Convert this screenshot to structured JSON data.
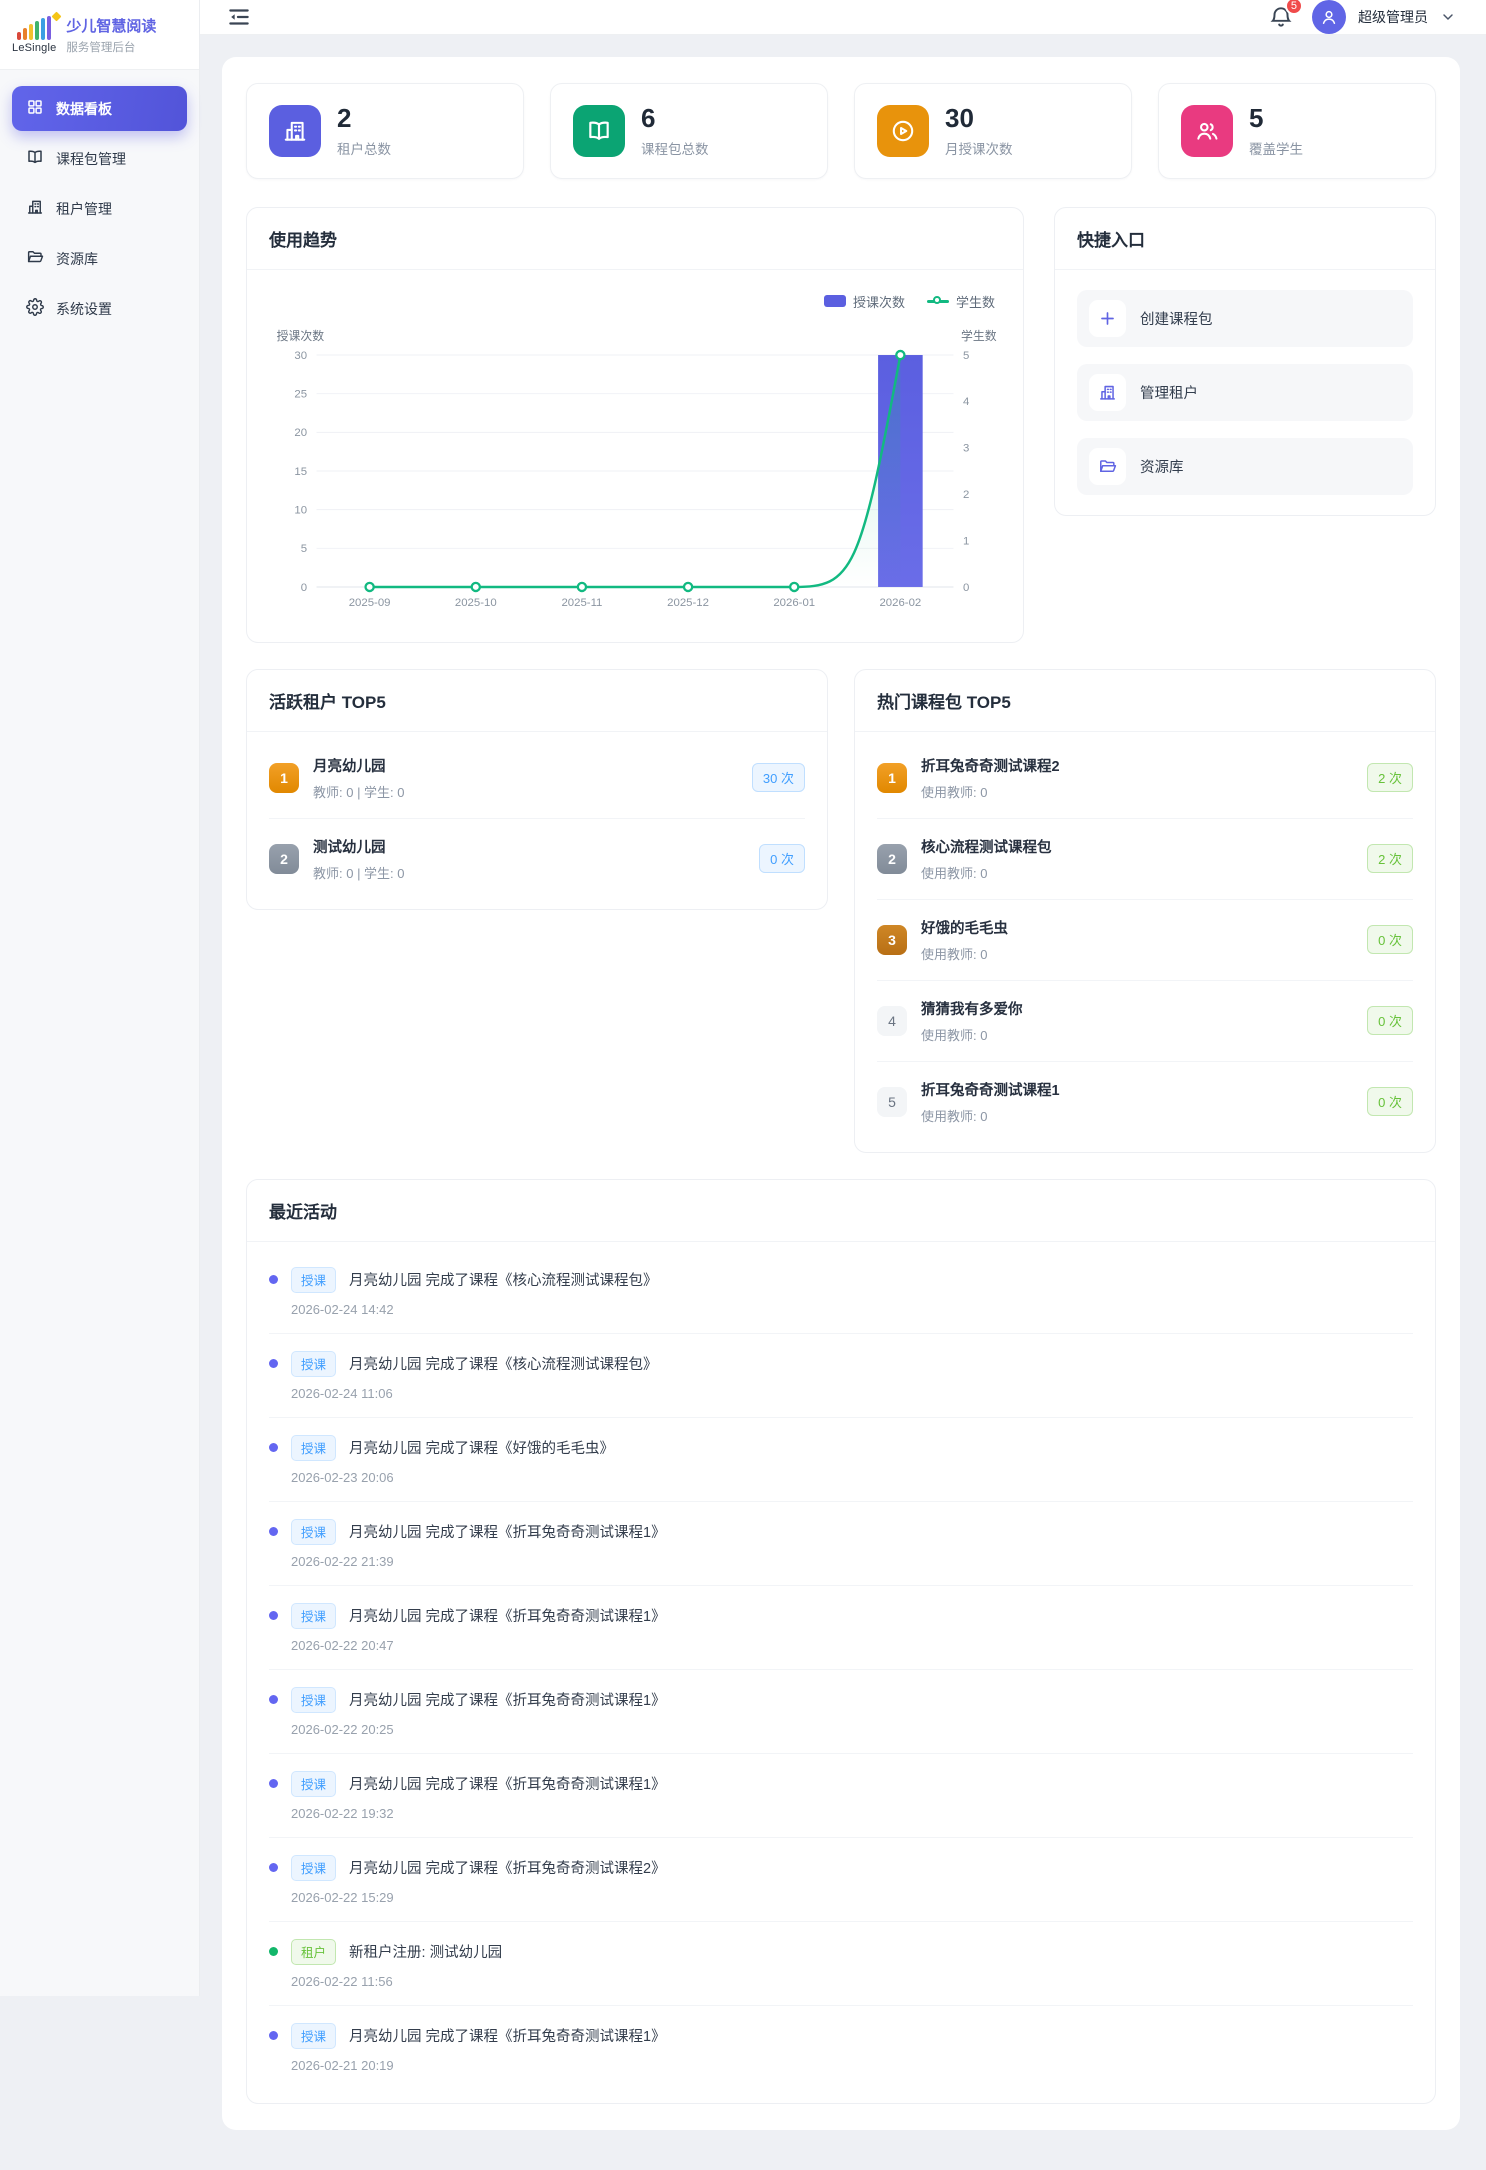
{
  "theme": {
    "primary": "#5b5fe0",
    "bar_color": "#5b5fe0",
    "line_color": "#12b981",
    "badge_red": "#f04b4b"
  },
  "app": {
    "brand_name": "LeSingle",
    "title": "少儿智慧阅读",
    "subtitle": "服务管理后台"
  },
  "sidebar": {
    "items": [
      {
        "label": "数据看板",
        "icon": "dashboard-icon",
        "active": true
      },
      {
        "label": "课程包管理",
        "icon": "book-icon",
        "active": false
      },
      {
        "label": "租户管理",
        "icon": "building-icon",
        "active": false
      },
      {
        "label": "资源库",
        "icon": "folder-icon",
        "active": false
      },
      {
        "label": "系统设置",
        "icon": "gear-icon",
        "active": false
      }
    ]
  },
  "topbar": {
    "notification_count": "5",
    "user_name": "超级管理员"
  },
  "stats": [
    {
      "value": "2",
      "label": "租户总数",
      "icon": "building-icon",
      "color": "#5b5fe0"
    },
    {
      "value": "6",
      "label": "课程包总数",
      "icon": "book-icon",
      "color": "#0ba473"
    },
    {
      "value": "30",
      "label": "月授课次数",
      "icon": "play-icon",
      "color": "#e8930c"
    },
    {
      "value": "5",
      "label": "覆盖学生",
      "icon": "users-icon",
      "color": "#e93a80"
    }
  ],
  "chart_panel": {
    "title": "使用趋势"
  },
  "chart_data": {
    "type": "bar",
    "title": "使用趋势",
    "categories": [
      "2025-09",
      "2025-10",
      "2025-11",
      "2025-12",
      "2026-01",
      "2026-02"
    ],
    "series": [
      {
        "name": "授课次数",
        "type": "bar",
        "axis": "left",
        "color": "#5b5fe0",
        "values": [
          0,
          0,
          0,
          0,
          0,
          30
        ]
      },
      {
        "name": "学生数",
        "type": "line",
        "axis": "right",
        "color": "#12b981",
        "values": [
          0,
          0,
          0,
          0,
          0,
          5
        ]
      }
    ],
    "left_axis": {
      "name": "授课次数",
      "min": 0,
      "max": 30,
      "ticks": [
        0,
        5,
        10,
        15,
        20,
        25,
        30
      ]
    },
    "right_axis": {
      "name": "学生数",
      "min": 0,
      "max": 5,
      "ticks": [
        0,
        1,
        2,
        3,
        4,
        5
      ]
    },
    "grid": true,
    "legend_position": "top-right"
  },
  "quick_entry": {
    "title": "快捷入口",
    "items": [
      {
        "label": "创建课程包",
        "icon": "plus-icon"
      },
      {
        "label": "管理租户",
        "icon": "building-icon"
      },
      {
        "label": "资源库",
        "icon": "folder-icon"
      }
    ]
  },
  "active_tenants": {
    "title": "活跃租户 TOP5",
    "items": [
      {
        "rank": "1",
        "name": "月亮幼儿园",
        "detail": "教师: 0 | 学生: 0",
        "count": "30 次"
      },
      {
        "rank": "2",
        "name": "测试幼儿园",
        "detail": "教师: 0 | 学生: 0",
        "count": "0 次"
      }
    ]
  },
  "hot_courses": {
    "title": "热门课程包 TOP5",
    "items": [
      {
        "rank": "1",
        "name": "折耳兔奇奇测试课程2",
        "detail": "使用教师: 0",
        "count": "2 次"
      },
      {
        "rank": "2",
        "name": "核心流程测试课程包",
        "detail": "使用教师: 0",
        "count": "2 次"
      },
      {
        "rank": "3",
        "name": "好饿的毛毛虫",
        "detail": "使用教师: 0",
        "count": "0 次"
      },
      {
        "rank": "4",
        "name": "猜猜我有多爱你",
        "detail": "使用教师: 0",
        "count": "0 次"
      },
      {
        "rank": "5",
        "name": "折耳兔奇奇测试课程1",
        "detail": "使用教师: 0",
        "count": "0 次"
      }
    ]
  },
  "recent_activity": {
    "title": "最近活动",
    "items": [
      {
        "kind": "course",
        "tag": "授课",
        "text": "月亮幼儿园 完成了课程《核心流程测试课程包》",
        "time": "2026-02-24 14:42"
      },
      {
        "kind": "course",
        "tag": "授课",
        "text": "月亮幼儿园 完成了课程《核心流程测试课程包》",
        "time": "2026-02-24 11:06"
      },
      {
        "kind": "course",
        "tag": "授课",
        "text": "月亮幼儿园 完成了课程《好饿的毛毛虫》",
        "time": "2026-02-23 20:06"
      },
      {
        "kind": "course",
        "tag": "授课",
        "text": "月亮幼儿园 完成了课程《折耳兔奇奇测试课程1》",
        "time": "2026-02-22 21:39"
      },
      {
        "kind": "course",
        "tag": "授课",
        "text": "月亮幼儿园 完成了课程《折耳兔奇奇测试课程1》",
        "time": "2026-02-22 20:47"
      },
      {
        "kind": "course",
        "tag": "授课",
        "text": "月亮幼儿园 完成了课程《折耳兔奇奇测试课程1》",
        "time": "2026-02-22 20:25"
      },
      {
        "kind": "course",
        "tag": "授课",
        "text": "月亮幼儿园 完成了课程《折耳兔奇奇测试课程1》",
        "time": "2026-02-22 19:32"
      },
      {
        "kind": "course",
        "tag": "授课",
        "text": "月亮幼儿园 完成了课程《折耳兔奇奇测试课程2》",
        "time": "2026-02-22 15:29"
      },
      {
        "kind": "tenant",
        "tag": "租户",
        "text": "新租户注册: 测试幼儿园",
        "time": "2026-02-22 11:56"
      },
      {
        "kind": "course",
        "tag": "授课",
        "text": "月亮幼儿园 完成了课程《折耳兔奇奇测试课程1》",
        "time": "2026-02-21 20:19"
      }
    ]
  }
}
